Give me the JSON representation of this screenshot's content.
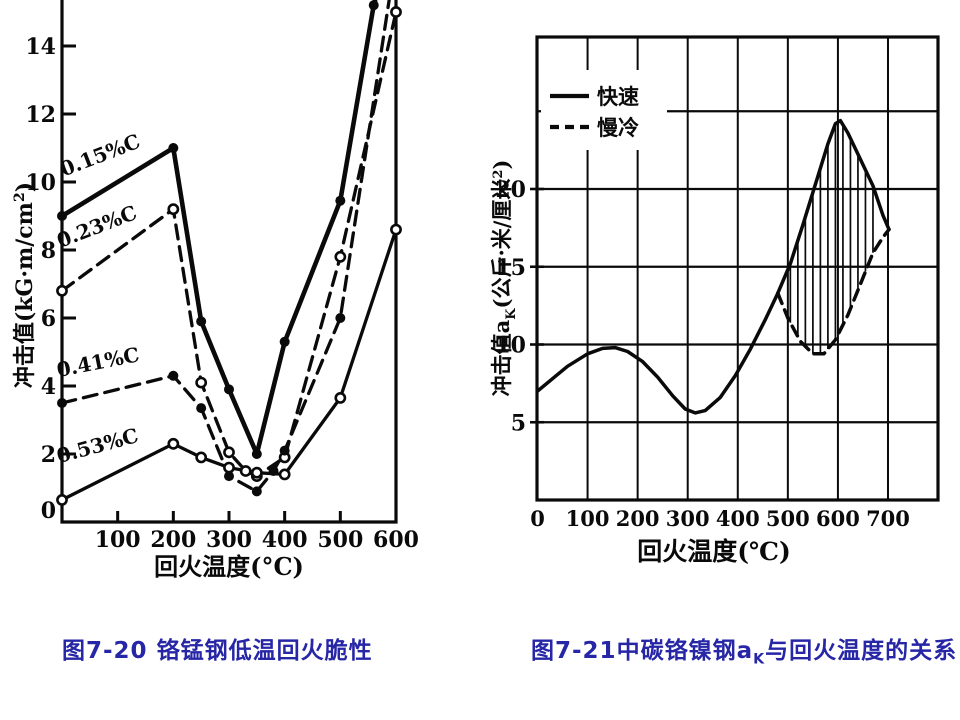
{
  "page": {
    "background": "#ffffff",
    "ink": "#0a0a0a",
    "caption_color": "#2626a6"
  },
  "captions": {
    "left": {
      "fig": "图7-20",
      "title": " 铬锰钢低温回火脆性"
    },
    "right": {
      "fig": "图7-21",
      "pre": "中碳铬镍钢a",
      "sub": "K",
      "post": "与回火温度的关系"
    }
  },
  "chart_data": [
    {
      "id": "fig-7-20",
      "type": "line",
      "title": "图7-20 铬锰钢低温回火脆性",
      "xlabel": "回火温度(°C)",
      "ylabel_parts": {
        "main": "冲击值(kG·m/cm",
        "sup": "2",
        "close": ")"
      },
      "xlim": [
        0,
        600
      ],
      "ylim": [
        0,
        15.35
      ],
      "xticks": [
        100,
        200,
        300,
        400,
        500,
        600
      ],
      "yticks": [
        0,
        2,
        4,
        6,
        8,
        10,
        12,
        14
      ],
      "grid": false,
      "series": [
        {
          "name": "0.15%C",
          "line": "solid",
          "marker": "filled",
          "thick": true,
          "points": [
            [
              0,
              9.0
            ],
            [
              200,
              11.0
            ],
            [
              250,
              5.9
            ],
            [
              300,
              3.9
            ],
            [
              350,
              2.0
            ],
            [
              400,
              5.3
            ],
            [
              500,
              9.45
            ],
            [
              560,
              15.2
            ],
            [
              578,
              16.3
            ]
          ],
          "label": {
            "x": 73,
            "y": 10.6,
            "angle": -21
          }
        },
        {
          "name": "0.23%C",
          "line": "dashed",
          "marker": "open",
          "thick": false,
          "points": [
            [
              0,
              6.8
            ],
            [
              200,
              9.2
            ],
            [
              250,
              4.1
            ],
            [
              300,
              2.05
            ],
            [
              330,
              1.5
            ],
            [
              350,
              1.35
            ],
            [
              400,
              1.9
            ],
            [
              500,
              7.8
            ],
            [
              600,
              15.0
            ]
          ],
          "label": {
            "x": 67,
            "y": 8.5,
            "angle": -21
          }
        },
        {
          "name": "0.41%C",
          "line": "dashed",
          "marker": "filled",
          "thick": false,
          "points": [
            [
              0,
              3.5
            ],
            [
              200,
              4.3
            ],
            [
              250,
              3.35
            ],
            [
              300,
              1.35
            ],
            [
              350,
              0.9
            ],
            [
              380,
              1.5
            ],
            [
              400,
              2.1
            ],
            [
              500,
              6.0
            ],
            [
              592,
              15.8
            ]
          ],
          "label": {
            "x": 67,
            "y": 4.5,
            "angle": -11
          }
        },
        {
          "name": "0.53%C",
          "line": "solid",
          "marker": "open",
          "thick": false,
          "points": [
            [
              0,
              0.65
            ],
            [
              200,
              2.3
            ],
            [
              250,
              1.9
            ],
            [
              300,
              1.6
            ],
            [
              350,
              1.45
            ],
            [
              400,
              1.4
            ],
            [
              500,
              3.65
            ],
            [
              600,
              8.6
            ]
          ],
          "label": {
            "x": 67,
            "y": 2.05,
            "angle": -15
          }
        }
      ]
    },
    {
      "id": "fig-7-21",
      "type": "line",
      "title": "图7-21 中碳铬镍钢aK与回火温度的关系",
      "xlabel": "回火温度(℃)",
      "ylabel_parts": {
        "pre": "冲击值a",
        "sub": "K",
        "mid": "(公斤·米/厘米",
        "sup": "2",
        "close": ")"
      },
      "xlim": [
        0,
        800
      ],
      "ylim": [
        0,
        29.8
      ],
      "xticks": [
        0,
        100,
        200,
        300,
        400,
        500,
        600,
        700
      ],
      "yticks": [
        5,
        10,
        15,
        20
      ],
      "grid_x": [
        100,
        200,
        300,
        400,
        500,
        600,
        700
      ],
      "grid_y": [
        5,
        10,
        15,
        20,
        25
      ],
      "grid": true,
      "legend": [
        {
          "label": "快速",
          "line": "solid"
        },
        {
          "label": "慢冷",
          "line": "dashed"
        }
      ],
      "series": [
        {
          "name": "base",
          "line": "solid",
          "role": "common",
          "points": [
            [
              0,
              7.0
            ],
            [
              30,
              7.8
            ],
            [
              60,
              8.6
            ],
            [
              100,
              9.4
            ],
            [
              130,
              9.75
            ],
            [
              155,
              9.8
            ],
            [
              180,
              9.55
            ],
            [
              210,
              8.9
            ],
            [
              240,
              7.9
            ],
            [
              270,
              6.7
            ],
            [
              295,
              5.85
            ],
            [
              315,
              5.6
            ],
            [
              335,
              5.75
            ],
            [
              365,
              6.6
            ],
            [
              395,
              8.0
            ],
            [
              425,
              9.7
            ],
            [
              455,
              11.6
            ],
            [
              480,
              13.3
            ]
          ]
        },
        {
          "name": "快速",
          "line": "solid",
          "role": "upper",
          "points": [
            [
              480,
              13.3
            ],
            [
              505,
              15.2
            ],
            [
              530,
              17.7
            ],
            [
              555,
              20.3
            ],
            [
              580,
              22.9
            ],
            [
              595,
              24.2
            ],
            [
              605,
              24.4
            ],
            [
              620,
              23.6
            ],
            [
              645,
              21.9
            ],
            [
              670,
              20.2
            ],
            [
              690,
              18.3
            ],
            [
              702,
              17.4
            ]
          ]
        },
        {
          "name": "慢冷",
          "line": "dashed",
          "role": "lower",
          "points": [
            [
              480,
              13.3
            ],
            [
              500,
              11.7
            ],
            [
              525,
              10.2
            ],
            [
              550,
              9.4
            ],
            [
              572,
              9.4
            ],
            [
              595,
              10.3
            ],
            [
              620,
              11.9
            ],
            [
              645,
              13.9
            ],
            [
              670,
              15.9
            ],
            [
              690,
              16.9
            ],
            [
              702,
              17.4
            ]
          ]
        }
      ],
      "hatch": {
        "from": 505,
        "to": 683,
        "step": 15
      }
    }
  ]
}
